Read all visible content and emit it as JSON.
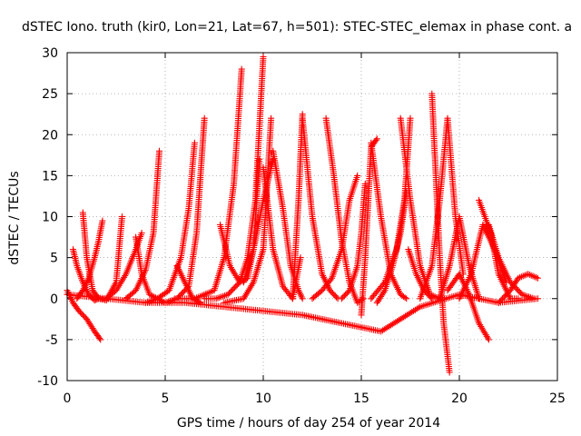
{
  "chart_data": {
    "type": "scatter",
    "title": "dSTEC Iono. truth (kir0, Lon=21, Lat=67, h=501): STEC-STEC_elemax in phase cont. a",
    "xlabel": "GPS time / hours of day 254 of year 2014",
    "ylabel": "dSTEC  / TECUs",
    "xlim": [
      0,
      25
    ],
    "ylim": [
      -10,
      30
    ],
    "x_ticks": [
      0,
      5,
      10,
      15,
      20,
      25
    ],
    "y_ticks": [
      -10,
      -5,
      0,
      5,
      10,
      15,
      20,
      25,
      30
    ],
    "x_tick_labels": [
      "0",
      "5",
      "10",
      "15",
      "20",
      "25"
    ],
    "y_tick_labels": [
      "-10",
      "-5",
      "0",
      "5",
      "10",
      "15",
      "20",
      "25",
      "30"
    ],
    "grid": true,
    "marker": "plus",
    "color": "#ff0000",
    "arcs": [
      {
        "x": [
          0.0,
          0.3,
          0.6,
          1.0,
          1.4,
          1.7
        ],
        "y": [
          1,
          -0.5,
          -1.5,
          -2.5,
          -4,
          -5
        ]
      },
      {
        "x": [
          0.3,
          0.5,
          0.8,
          1.1,
          1.4,
          1.6
        ],
        "y": [
          6,
          4,
          2,
          0.5,
          -0.2,
          0
        ]
      },
      {
        "x": [
          0.5,
          0.8,
          1.1,
          1.4,
          1.6,
          1.8
        ],
        "y": [
          0,
          1,
          2.5,
          5,
          7,
          9.5
        ]
      },
      {
        "x": [
          0.8,
          1.0,
          1.3,
          1.6,
          2.0,
          2.5,
          2.8
        ],
        "y": [
          10.5,
          5,
          1,
          0,
          -0.2,
          2,
          10
        ]
      },
      {
        "x": [
          2.0,
          2.5,
          3.0,
          3.5,
          3.8
        ],
        "y": [
          0,
          1,
          3,
          6,
          8
        ]
      },
      {
        "x": [
          3.0,
          3.5,
          4.0,
          4.4,
          4.7
        ],
        "y": [
          0,
          1,
          3.5,
          8,
          18
        ]
      },
      {
        "x": [
          3.5,
          3.8,
          4.2,
          4.6,
          5.0
        ],
        "y": [
          7.5,
          3,
          0.5,
          0,
          -0.5
        ]
      },
      {
        "x": [
          4.0,
          4.6,
          5.2,
          5.8,
          6.2,
          6.5
        ],
        "y": [
          -0.5,
          0,
          1,
          5,
          11,
          19
        ]
      },
      {
        "x": [
          5.0,
          5.6,
          6.2,
          6.6,
          7.0
        ],
        "y": [
          -0.5,
          0,
          1.5,
          8,
          22
        ]
      },
      {
        "x": [
          5.6,
          6.0,
          6.4,
          6.8
        ],
        "y": [
          4,
          2,
          0,
          -0.5
        ]
      },
      {
        "x": [
          5.5,
          6.5,
          7.5,
          8.0,
          8.5,
          8.9
        ],
        "y": [
          0,
          0,
          1,
          5,
          14,
          28
        ]
      },
      {
        "x": [
          7.0,
          7.6,
          8.2,
          8.8,
          9.2,
          9.6,
          10.0
        ],
        "y": [
          0,
          0,
          0.5,
          2,
          5,
          12,
          29.5
        ]
      },
      {
        "x": [
          7.8,
          8.3,
          8.8,
          9.2,
          9.5,
          9.8
        ],
        "y": [
          9,
          4,
          2,
          2.5,
          6,
          17
        ]
      },
      {
        "x": [
          8.0,
          9.0,
          9.5,
          10.0,
          10.4
        ],
        "y": [
          -0.5,
          0,
          2,
          6,
          22
        ]
      },
      {
        "x": [
          9.0,
          9.5,
          10.0,
          10.5
        ],
        "y": [
          2,
          6,
          12,
          17
        ]
      },
      {
        "x": [
          10.0,
          10.5,
          11.0,
          11.5,
          11.9
        ],
        "y": [
          16,
          6,
          1.5,
          0,
          5
        ]
      },
      {
        "x": [
          10.5,
          11.0,
          11.4,
          11.8,
          12.0
        ],
        "y": [
          18,
          11,
          4,
          1,
          0
        ]
      },
      {
        "x": [
          11.5,
          11.8,
          12.0
        ],
        "y": [
          0,
          12,
          22.5
        ]
      },
      {
        "x": [
          12.0,
          12.5,
          13.0,
          13.4,
          13.8
        ],
        "y": [
          22,
          10,
          3,
          1,
          0
        ]
      },
      {
        "x": [
          12.5,
          13.0,
          13.5,
          14.0,
          14.4,
          14.8
        ],
        "y": [
          0,
          1,
          2.5,
          6,
          12,
          15
        ]
      },
      {
        "x": [
          13.2,
          13.6,
          14.0,
          14.4,
          14.8,
          15.1
        ],
        "y": [
          22,
          15,
          7,
          2,
          -0.5,
          0
        ]
      },
      {
        "x": [
          14.0,
          14.4,
          14.8,
          15.0,
          15.2
        ],
        "y": [
          0,
          1,
          4,
          8,
          14
        ]
      },
      {
        "x": [
          15.0,
          15.2,
          15.5,
          15.8
        ],
        "y": [
          -2,
          5,
          18.5,
          19.5
        ]
      },
      {
        "x": [
          15.5,
          16.0,
          16.5,
          17.0,
          17.3
        ],
        "y": [
          19,
          10,
          3,
          0.5,
          0
        ]
      },
      {
        "x": [
          15.8,
          16.2,
          16.6,
          17.0,
          17.3
        ],
        "y": [
          -0.5,
          1,
          4,
          8,
          13
        ]
      },
      {
        "x": [
          15.5,
          16.2,
          16.8,
          17.2,
          17.5
        ],
        "y": [
          0,
          2,
          6,
          12,
          22
        ]
      },
      {
        "x": [
          17.0,
          17.5,
          18.0,
          18.5,
          19.0
        ],
        "y": [
          22,
          12,
          4,
          0.5,
          0
        ]
      },
      {
        "x": [
          17.4,
          17.8,
          18.2,
          18.6
        ],
        "y": [
          6,
          3,
          1,
          0
        ]
      },
      {
        "x": [
          18.0,
          18.6,
          19.0,
          19.4,
          19.8,
          20.2
        ],
        "y": [
          0,
          4,
          12,
          22,
          10,
          3
        ]
      },
      {
        "x": [
          18.6,
          18.8,
          19.0,
          19.2,
          19.5
        ],
        "y": [
          25,
          15,
          5,
          -3,
          -9
        ]
      },
      {
        "x": [
          19.0,
          19.5,
          20.0,
          20.5,
          21.0
        ],
        "y": [
          0,
          4,
          10,
          4,
          0
        ]
      },
      {
        "x": [
          19.4,
          20.0,
          20.5,
          21.0,
          21.5
        ],
        "y": [
          1,
          3,
          0.5,
          -3,
          -5
        ]
      },
      {
        "x": [
          20.0,
          20.6,
          21.2,
          21.8,
          22.4
        ],
        "y": [
          0,
          3,
          9,
          6,
          2
        ]
      },
      {
        "x": [
          21.0,
          21.6,
          22.0,
          22.6,
          23.0
        ],
        "y": [
          12,
          8,
          3,
          0,
          0
        ]
      },
      {
        "x": [
          21.5,
          22.0,
          22.6,
          23.2,
          23.8
        ],
        "y": [
          9,
          5,
          2,
          0.5,
          0
        ]
      },
      {
        "x": [
          22.0,
          22.6,
          23.0,
          23.5,
          24.0
        ],
        "y": [
          -0.5,
          1,
          2.5,
          3,
          2.5
        ]
      }
    ],
    "baseline": {
      "x": [
        0,
        2,
        4,
        6,
        8,
        10,
        12,
        14,
        16,
        18,
        20,
        22,
        24
      ],
      "y": [
        0.5,
        0,
        -0.5,
        -0.5,
        -1,
        -1.5,
        -2,
        -3,
        -4,
        -1,
        0.5,
        -0.5,
        0
      ]
    }
  }
}
